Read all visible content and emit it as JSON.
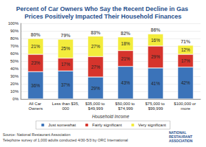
{
  "chart_data": {
    "type": "bar",
    "title": "Percent of Car Owners Who Say the Recent Decline in Gas Prices Positively Impacted Their Household Finances",
    "x_label": "Household Income",
    "categories": [
      "All Car Owners",
      "Less than $35,000",
      "$35,000 to $49,999",
      "$50,000 to $74,999",
      "$75,000 to $99,999",
      "$100,000 or more"
    ],
    "series": [
      {
        "name": "Just somewhat",
        "color": "#3b73b9",
        "values": [
          36,
          37,
          29,
          43,
          41,
          42
        ],
        "value_labels": [
          "36%",
          "37%",
          "29%",
          "43%",
          "41%",
          "42%"
        ]
      },
      {
        "name": "Fairly significant",
        "color": "#d6342c",
        "values": [
          23,
          17,
          27,
          21,
          29,
          17
        ],
        "value_labels": [
          "23%",
          "17%",
          "27%",
          "21%",
          "29%",
          "17%"
        ]
      },
      {
        "name": "Very significant",
        "color": "#f3ec3c",
        "values": [
          21,
          25,
          27,
          18,
          16,
          12
        ],
        "value_labels": [
          "21%",
          "25%",
          "27%",
          "18%",
          "16%",
          "12%"
        ]
      }
    ],
    "totals": {
      "values": [
        80,
        79,
        83,
        82,
        86,
        71
      ],
      "value_labels": [
        "80%",
        "79%",
        "83%",
        "82%",
        "86%",
        "71%"
      ]
    },
    "ylim": [
      0,
      100
    ],
    "yticks": [
      {
        "value": 0,
        "label": "0%"
      },
      {
        "value": 10,
        "label": "10%"
      },
      {
        "value": 20,
        "label": "20%"
      },
      {
        "value": 30,
        "label": "30%"
      },
      {
        "value": 40,
        "label": "40%"
      },
      {
        "value": 50,
        "label": "50%"
      },
      {
        "value": 60,
        "label": "60%"
      },
      {
        "value": 70,
        "label": "70%"
      },
      {
        "value": 80,
        "label": "80%"
      },
      {
        "value": 90,
        "label": "90%"
      },
      {
        "value": 100,
        "label": "100%"
      }
    ],
    "stacked": true,
    "data_labels": true,
    "grid": true,
    "legend": "bottom",
    "annotations": [
      "Source: National Restaurant Association",
      "Telephone survey of 1,000 adults conducted 4/30-5/3 by ORC International",
      "NATIONAL RESTAURANT ASSOCIATION"
    ]
  }
}
